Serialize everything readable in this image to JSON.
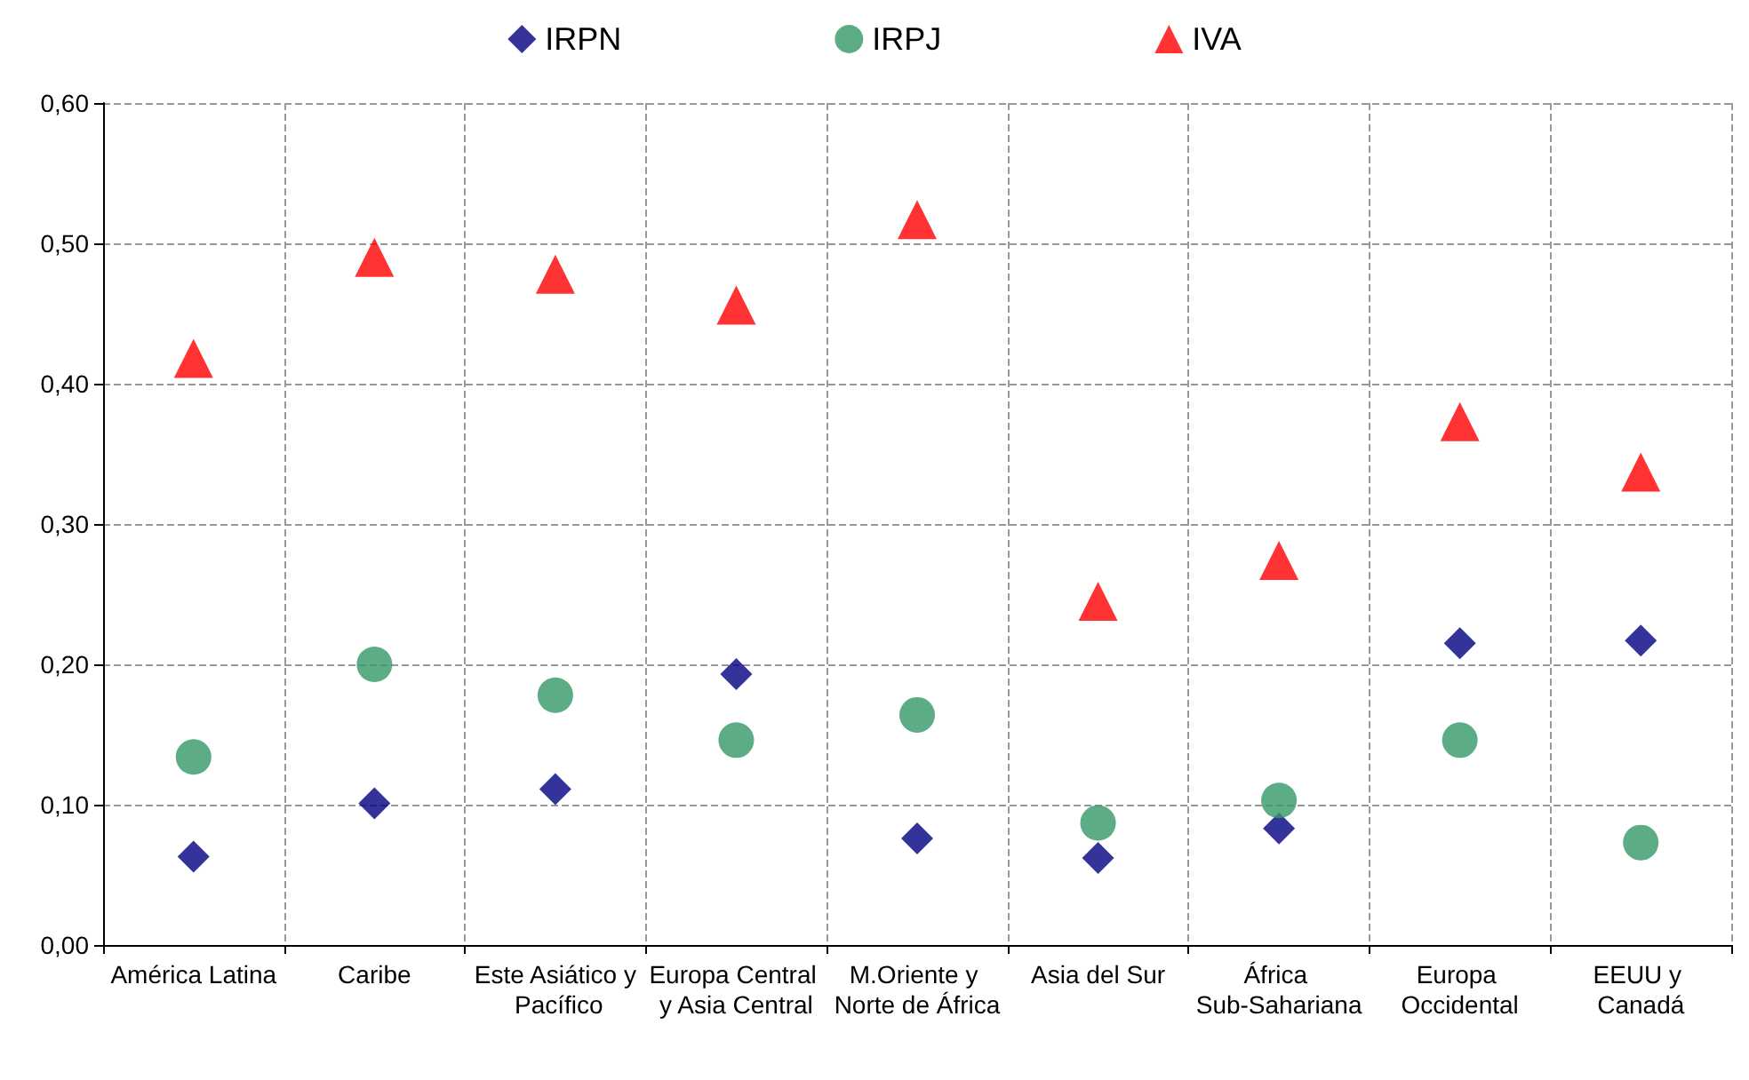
{
  "chart_data": {
    "type": "scatter",
    "categories": [
      "América Latina",
      "Caribe",
      "Este Asiático y Pacífico",
      "Europa Central y Asia Central",
      "M.Oriente y Norte de África",
      "Asia del Sur",
      "África Sub-Sahariana",
      "Europa Occidental",
      "EEUU y Canadá"
    ],
    "series": [
      {
        "name": "IRPN",
        "color": "#000080",
        "marker": "diamond",
        "values": [
          0.063,
          0.101,
          0.111,
          0.193,
          0.076,
          0.062,
          0.083,
          0.215,
          0.217
        ]
      },
      {
        "name": "IRPJ",
        "color": "#339966",
        "marker": "circle",
        "values": [
          0.134,
          0.2,
          0.178,
          0.146,
          0.164,
          0.087,
          0.103,
          0.146,
          0.073
        ]
      },
      {
        "name": "IVA",
        "color": "#ff0000",
        "marker": "triangle",
        "values": [
          0.418,
          0.49,
          0.478,
          0.456,
          0.517,
          0.245,
          0.274,
          0.373,
          0.337
        ]
      }
    ],
    "ylim": [
      0,
      0.6
    ],
    "yticks": [
      {
        "value": 0,
        "label": "0,00"
      },
      {
        "value": 0.1,
        "label": "0,10"
      },
      {
        "value": 0.2,
        "label": "0,20"
      },
      {
        "value": 0.3,
        "label": "0,30"
      },
      {
        "value": 0.4,
        "label": "0,40"
      },
      {
        "value": 0.5,
        "label": "0,50"
      },
      {
        "value": 0.6,
        "label": "0,60"
      }
    ],
    "grid": true,
    "legend": "top"
  }
}
